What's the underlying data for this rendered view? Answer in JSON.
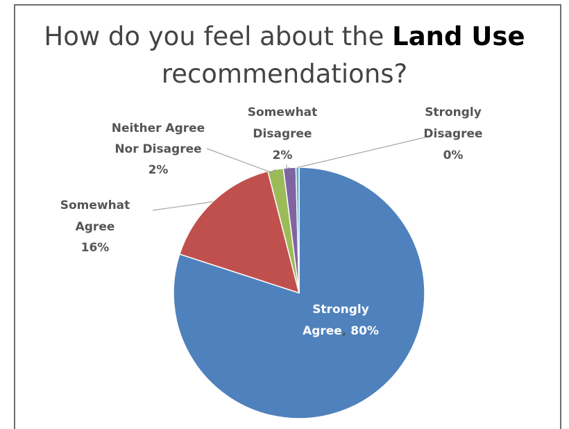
{
  "title": {
    "prefix": "How do you feel about the",
    "bold": "Land Use",
    "suffix": "recommendations?"
  },
  "colors": {
    "strongly_agree": "#4F81BD",
    "somewhat_agree": "#C0504D",
    "neither": "#9BBB59",
    "somewhat_disagree": "#8064A2",
    "strongly_disagree": "#4BACC6"
  },
  "chart_data": {
    "type": "pie",
    "title": "How do you feel about the Land Use recommendations?",
    "start_angle_deg": 0,
    "direction": "clockwise",
    "slices": [
      {
        "name": "Strongly Agree",
        "value": 80,
        "label_lines": [
          "Strongly",
          "Agree"
        ],
        "pct_label": "80%",
        "color": "#4F81BD"
      },
      {
        "name": "Somewhat Agree",
        "value": 16,
        "label_lines": [
          "Somewhat",
          "Agree"
        ],
        "pct_label": "16%",
        "color": "#C0504D"
      },
      {
        "name": "Neither Agree Nor Disagree",
        "value": 2,
        "label_lines": [
          "Neither Agree",
          "Nor Disagree"
        ],
        "pct_label": "2%",
        "color": "#9BBB59"
      },
      {
        "name": "Somewhat Disagree",
        "value": 1.6,
        "label_lines": [
          "Somewhat",
          "Disagree"
        ],
        "pct_label": "2%",
        "color": "#8064A2"
      },
      {
        "name": "Strongly Disagree",
        "value": 0.4,
        "label_lines": [
          "Strongly",
          "Disagree"
        ],
        "pct_label": "0%",
        "color": "#4BACC6"
      }
    ],
    "legend": "none"
  }
}
